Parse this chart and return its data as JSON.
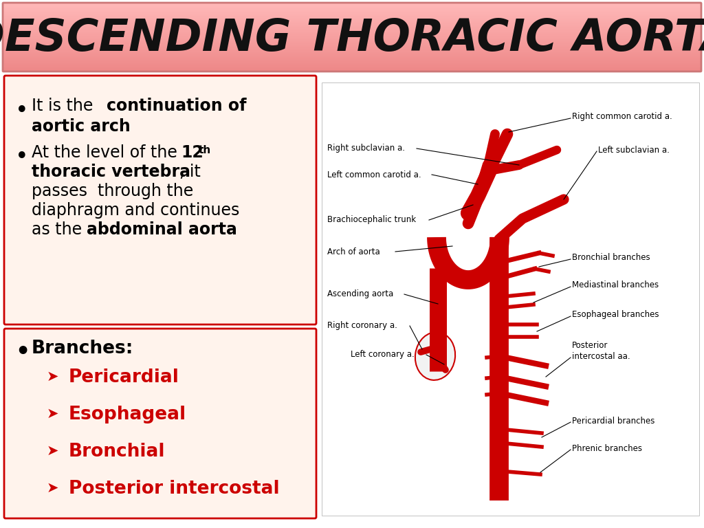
{
  "title": "DESCENDING THORACIC AORTA",
  "bg_color": "#FFFFFF",
  "title_top_color": "#FFB8B8",
  "title_bot_color": "#EE8888",
  "title_border_color": "#CC7777",
  "title_text_color": "#111111",
  "box_bg": "#FFF3EC",
  "box_border": "#CC0000",
  "red": "#CC0000",
  "black": "#111111",
  "label_fontsize": 8.5,
  "branch_fontsize": 19,
  "body_fontsize": 17,
  "title_fontsize": 46,
  "branches_header": "Branches:",
  "branch_items": [
    "Pericardial",
    "Esophageal",
    "Bronchial",
    "Posterior intercostal"
  ]
}
